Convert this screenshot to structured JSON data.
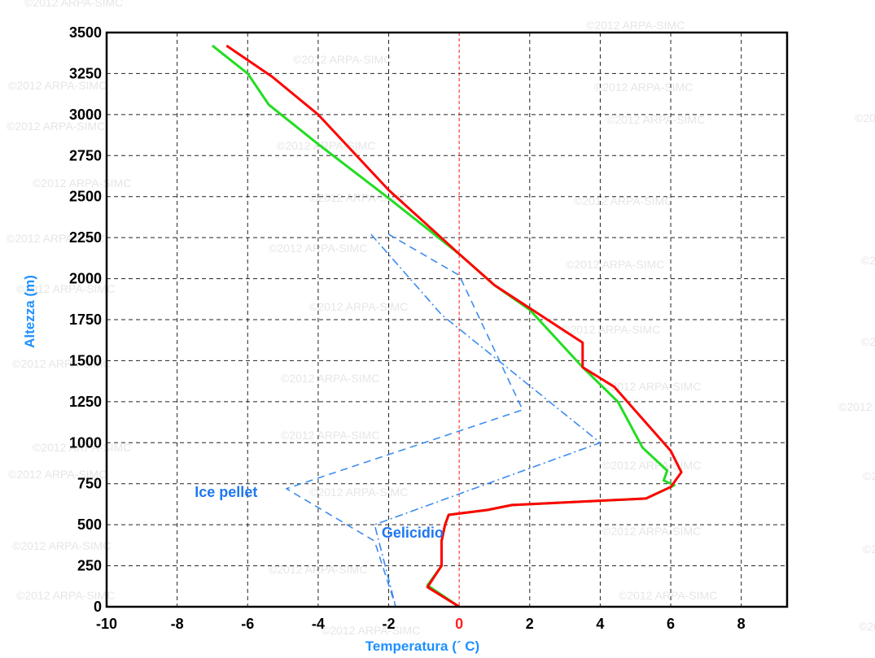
{
  "chart_data": {
    "type": "line",
    "xlabel": "Temperatura (´ C)",
    "ylabel": "Altezza (m)",
    "xlim": [
      -10,
      9.3
    ],
    "ylim": [
      0,
      3500
    ],
    "x_ticks": [
      -10,
      -8,
      -6,
      -4,
      -2,
      0,
      2,
      4,
      6,
      8
    ],
    "y_ticks": [
      0,
      250,
      500,
      750,
      1000,
      1250,
      1500,
      1750,
      2000,
      2250,
      2500,
      2750,
      3000,
      3250,
      3500
    ],
    "grid": true,
    "zero_line_color": "#ff4d4d",
    "watermark": "©2012 ARPA-SIMC",
    "series": [
      {
        "color": "#ff0000",
        "style": "solid",
        "points": [
          [
            -6.6,
            3420
          ],
          [
            -5.3,
            3230
          ],
          [
            -4.0,
            3000
          ],
          [
            -2.0,
            2540
          ],
          [
            0.0,
            2150
          ],
          [
            1.0,
            1960
          ],
          [
            3.5,
            1610
          ],
          [
            3.5,
            1460
          ],
          [
            4.4,
            1340
          ],
          [
            6.0,
            950
          ],
          [
            6.3,
            820
          ],
          [
            6.0,
            730
          ],
          [
            5.3,
            660
          ],
          [
            1.5,
            620
          ],
          [
            0.8,
            590
          ],
          [
            -0.3,
            560
          ],
          [
            -0.4,
            500
          ],
          [
            -0.5,
            400
          ],
          [
            -0.5,
            330
          ],
          [
            -0.5,
            250
          ],
          [
            -0.9,
            120
          ],
          [
            0.0,
            0
          ]
        ]
      },
      {
        "color": "#22dd22",
        "style": "solid",
        "points": [
          [
            -7.0,
            3420
          ],
          [
            -6.0,
            3250
          ],
          [
            -5.4,
            3060
          ],
          [
            -4.0,
            2820
          ],
          [
            -2.0,
            2490
          ],
          [
            0.0,
            2150
          ],
          [
            1.0,
            1960
          ],
          [
            2.0,
            1810
          ],
          [
            3.5,
            1460
          ],
          [
            4.5,
            1250
          ],
          [
            5.2,
            970
          ],
          [
            5.9,
            830
          ],
          [
            5.8,
            770
          ],
          [
            6.1,
            740
          ],
          [
            5.3,
            660
          ],
          [
            1.5,
            620
          ],
          [
            0.8,
            590
          ],
          [
            -0.3,
            560
          ],
          [
            -0.4,
            500
          ],
          [
            -0.5,
            400
          ],
          [
            -0.5,
            330
          ],
          [
            -0.5,
            250
          ],
          [
            -0.9,
            130
          ],
          [
            0.0,
            0
          ]
        ]
      },
      {
        "color": "#3c8cf0",
        "style": "dashed",
        "points": [
          [
            -2.0,
            2270
          ],
          [
            0.0,
            2020
          ],
          [
            1.8,
            1200
          ],
          [
            -4.9,
            720
          ],
          [
            -2.4,
            400
          ],
          [
            -1.8,
            0
          ]
        ]
      },
      {
        "color": "#3c8cf0",
        "style": "dashdot",
        "points": [
          [
            -2.5,
            2270
          ],
          [
            -0.5,
            1780
          ],
          [
            4.0,
            1000
          ],
          [
            -2.4,
            500
          ],
          [
            -1.8,
            0
          ]
        ]
      }
    ],
    "annotations": [
      {
        "text": "Ice pellet",
        "x": -7.5,
        "y": 700
      },
      {
        "text": "Gelicidio",
        "x": -2.2,
        "y": 450
      }
    ]
  }
}
